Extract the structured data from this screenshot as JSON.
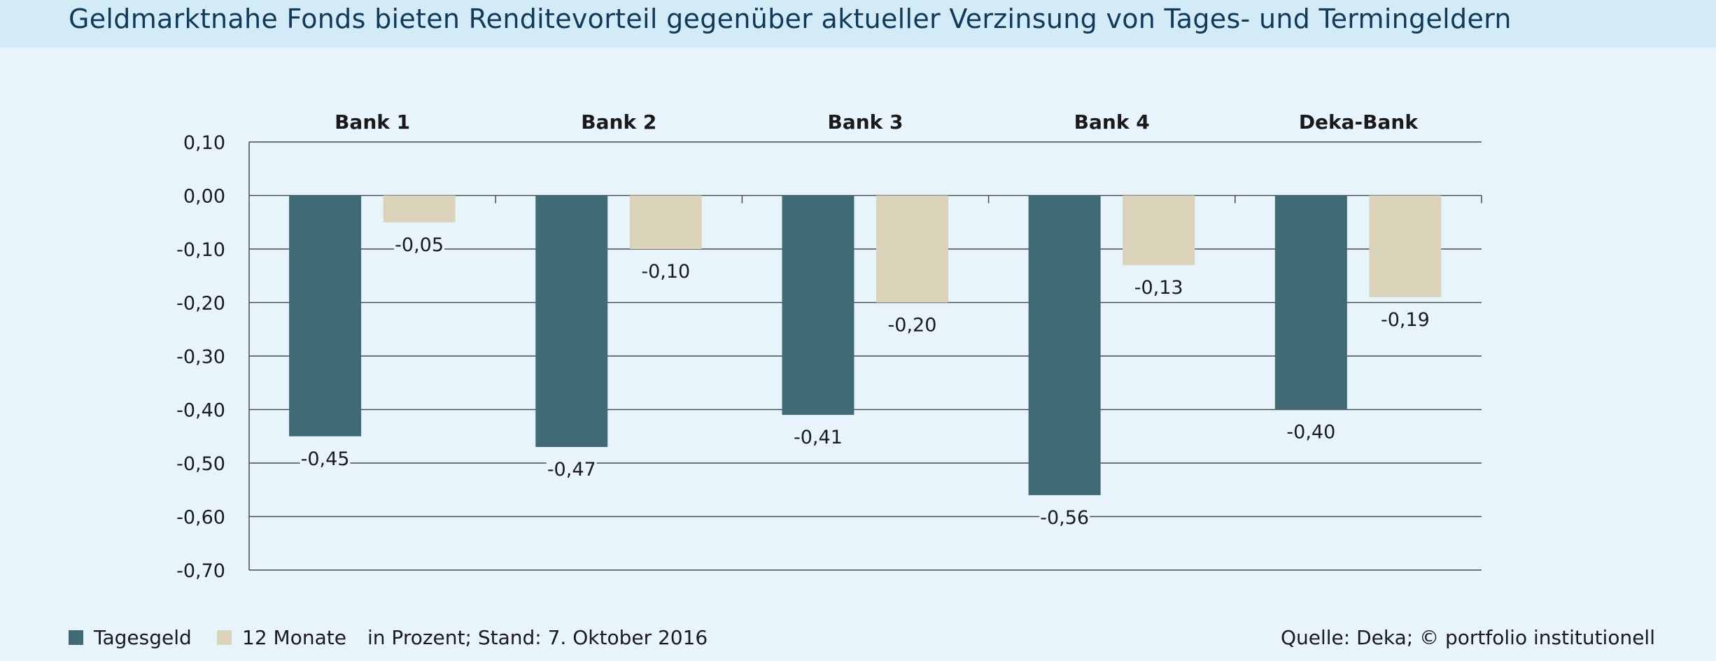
{
  "title": "Geldmarktnahe Fonds bieten Renditevorteil gegenüber aktueller Verzinsung von Tages- und Termingeldern",
  "colors": {
    "background": "#e8f4fc",
    "title_bar": "#d3eaf7",
    "title_text": "#0f3a5a",
    "grid": "#4a4a4a"
  },
  "chart_data": {
    "type": "bar",
    "categories": [
      "Bank 1",
      "Bank 2",
      "Bank 3",
      "Bank 4",
      "Deka-Bank"
    ],
    "series": [
      {
        "name": "Tagesgeld",
        "color": "#406b74",
        "values": [
          -0.45,
          -0.47,
          -0.41,
          -0.56,
          -0.4
        ],
        "labels": [
          "-0,45",
          "-0,47",
          "-0,41",
          "-0,56",
          "-0,40"
        ]
      },
      {
        "name": "12 Monate",
        "color": "#dbd2ba",
        "values": [
          -0.05,
          -0.1,
          -0.2,
          -0.13,
          -0.19
        ],
        "labels": [
          "-0,05",
          "-0,10",
          "-0,20",
          "-0,13",
          "-0,19"
        ]
      }
    ],
    "ylim": [
      -0.7,
      0.1
    ],
    "yticks": [
      0.1,
      0.0,
      -0.1,
      -0.2,
      -0.3,
      -0.4,
      -0.5,
      -0.6,
      -0.7
    ],
    "ytick_labels": [
      "0,10",
      "0,00",
      "-0,10",
      "-0,20",
      "-0,30",
      "-0,40",
      "-0,50",
      "-0,60",
      "-0,70"
    ],
    "grid": true,
    "legend_position": "bottom-left"
  },
  "footer": {
    "note": "in Prozent; Stand: 7. Oktober 2016",
    "source": "Quelle: Deka; © portfolio institutionell"
  }
}
